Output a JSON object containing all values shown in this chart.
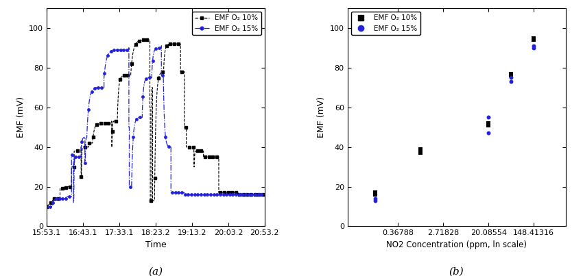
{
  "left_plot": {
    "ylabel": "EMF (mV)",
    "xlabel": "Time",
    "ylim": [
      0,
      110
    ],
    "yticks": [
      0,
      20,
      40,
      60,
      80,
      100
    ],
    "xtick_labels": [
      "15:53.1",
      "16:43.1",
      "17:33.1",
      "18:23.2",
      "19:13.2",
      "20:03.2",
      "20:53.2"
    ],
    "label_a": "(a)",
    "black_line_label": "EMF O₂ 10%",
    "blue_line_label": "EMF O₂ 15%"
  },
  "right_plot": {
    "ylabel": "EMF (mV)",
    "xlabel": "NO2 Concentration (ppm, ln scale)",
    "ylim": [
      0,
      110
    ],
    "yticks": [
      0,
      20,
      40,
      60,
      80,
      100
    ],
    "label_b": "(b)",
    "black_label": "EMF O₂ 10%",
    "blue_label": "EMF O₂ 15%",
    "xtick_positions": [
      0.36788,
      2.71828,
      20.08554,
      148.41316
    ],
    "xtick_labels": [
      "0.36788",
      "2.71828",
      "20.08554",
      "148.41316"
    ],
    "black_scatter_x": [
      0.1353,
      0.1353,
      1.0,
      1.0,
      20.08554,
      20.08554,
      54.598,
      54.598,
      148.41316,
      148.41316
    ],
    "black_scatter_y": [
      17,
      16,
      37,
      39,
      51,
      52,
      76,
      77,
      94,
      95
    ],
    "blue_scatter_x": [
      0.1353,
      0.1353,
      20.08554,
      20.08554,
      54.598,
      54.598,
      148.41316,
      148.41316
    ],
    "blue_scatter_y": [
      13,
      14,
      47,
      55,
      73,
      75,
      90,
      91
    ]
  }
}
